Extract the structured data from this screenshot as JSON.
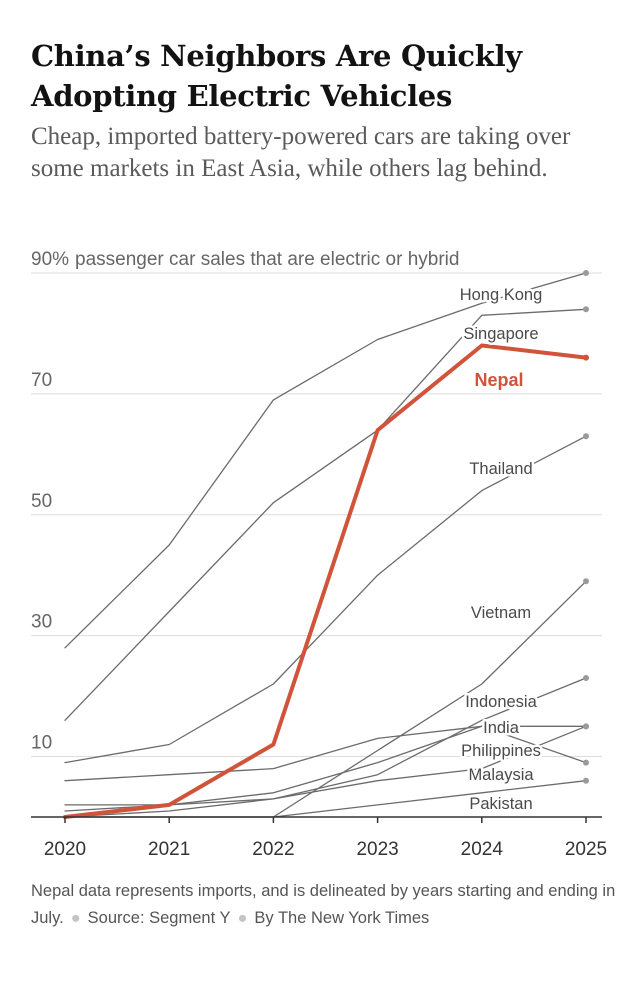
{
  "header": {
    "title": "China’s Neighbors Are Quickly Adopting Electric Vehicles",
    "subtitle": "Cheap, imported battery-powered cars are taking over some markets in East Asia, while others lag behind."
  },
  "footer": {
    "note": "Nepal data represents imports, and is delineated by years starting and ending in July.",
    "source": "Source: Segment Y",
    "credit": "By The New York Times"
  },
  "colors": {
    "highlight": "#d0533a",
    "line": "#6b6b6b",
    "grid": "#dddddd",
    "axis": "#333333"
  },
  "chart_data": {
    "type": "line",
    "title": "China’s Neighbors Are Quickly Adopting Electric Vehicles",
    "ylabel": "passenger car sales that are electric or hybrid",
    "ylabel_unit": "%",
    "xlabel": "",
    "x": [
      2020,
      2021,
      2022,
      2023,
      2024,
      2025
    ],
    "x_ticks": [
      "2020",
      "2021",
      "2022",
      "2023",
      "2024",
      "2025"
    ],
    "ylim": [
      0,
      90
    ],
    "y_ticks": [
      10,
      30,
      50,
      70,
      90
    ],
    "y_tick_labels": [
      "10",
      "30",
      "50",
      "70",
      "90%"
    ],
    "grid": true,
    "series": [
      {
        "name": "Hong Kong",
        "values": [
          28,
          45,
          69,
          79,
          85,
          90
        ],
        "highlight": false
      },
      {
        "name": "Singapore",
        "values": [
          16,
          34,
          52,
          64,
          83,
          84
        ],
        "highlight": false
      },
      {
        "name": "Nepal",
        "values": [
          0,
          2,
          12,
          64,
          78,
          76
        ],
        "highlight": true
      },
      {
        "name": "Thailand",
        "values": [
          9,
          12,
          22,
          40,
          54,
          63
        ],
        "highlight": false
      },
      {
        "name": "Vietnam",
        "values": [
          0,
          0,
          0,
          11,
          22,
          39
        ],
        "highlight": false
      },
      {
        "name": "Indonesia",
        "values": [
          0,
          1,
          3,
          7,
          16,
          23
        ],
        "highlight": false
      },
      {
        "name": "India",
        "values": [
          1,
          2,
          4,
          9,
          15,
          15
        ],
        "highlight": false
      },
      {
        "name": "Philippines",
        "values": [
          2,
          2,
          3,
          6,
          8,
          15
        ],
        "highlight": false
      },
      {
        "name": "Malaysia",
        "values": [
          6,
          7,
          8,
          13,
          15,
          9
        ],
        "highlight": false
      },
      {
        "name": "Pakistan",
        "values": [
          0,
          0,
          0,
          2,
          4,
          6
        ],
        "highlight": false
      }
    ]
  }
}
